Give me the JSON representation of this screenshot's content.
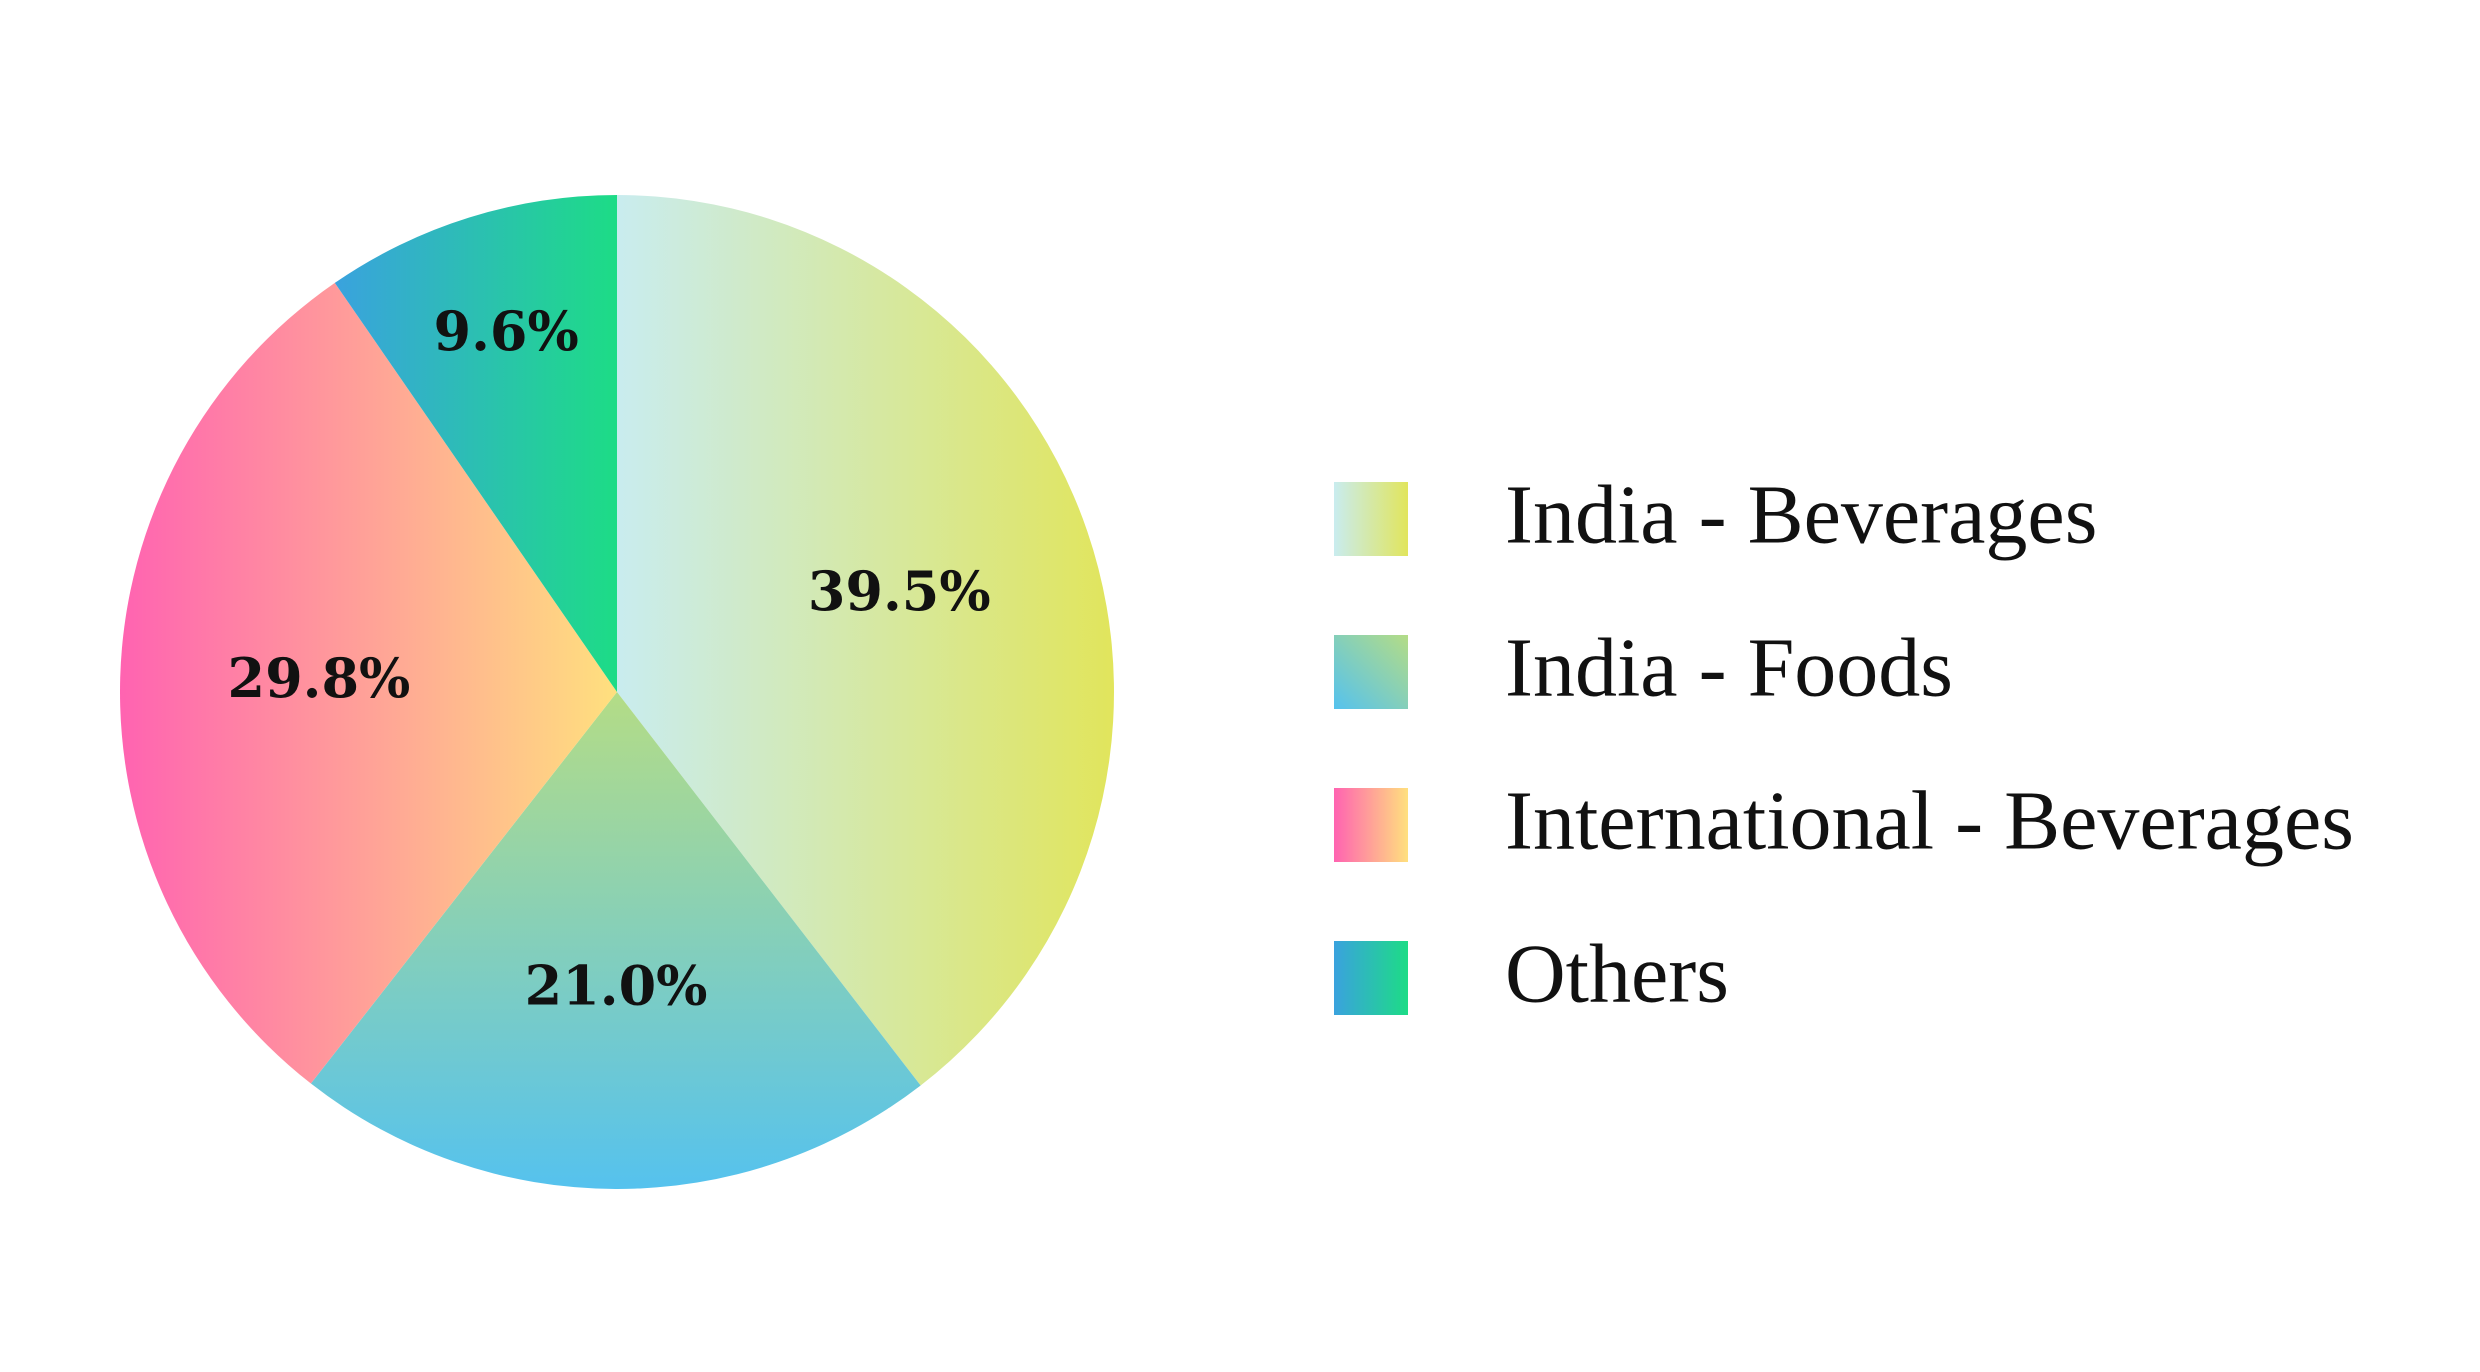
{
  "chart_data": {
    "type": "pie",
    "categories": [
      "India - Beverages",
      "India - Foods",
      "International - Beverages",
      "Others"
    ],
    "values": [
      39.5,
      21.0,
      29.8,
      9.6
    ],
    "value_labels": [
      "39.5%",
      "21.0%",
      "29.8%",
      "9.6%"
    ],
    "colors": [
      [
        "#c9ecef",
        "#e1e55c"
      ],
      [
        "#b4dc86",
        "#55c2ee"
      ],
      [
        "#ff63b1",
        "#ffe07e"
      ],
      [
        "#3aa2de",
        "#1ddc86"
      ]
    ],
    "legend": "right"
  }
}
